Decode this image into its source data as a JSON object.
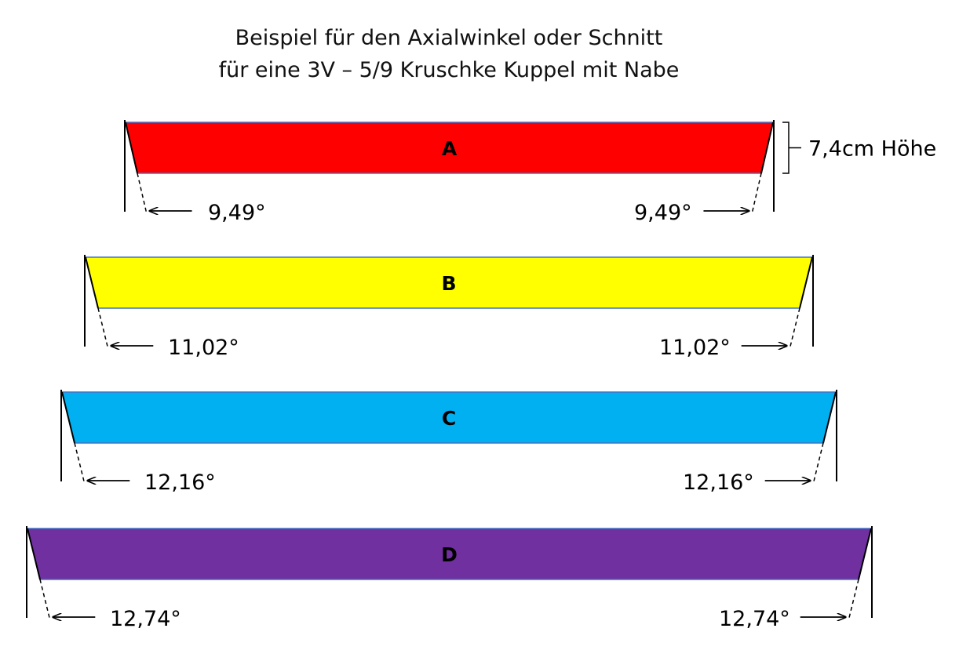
{
  "title": {
    "line1": "Beispiel für den Axialwinkel oder Schnitt",
    "line2": "für eine 3V – 5/9 Kruschke Kuppel mit Nabe"
  },
  "height_note": "7,4cm Höhe",
  "struts": [
    {
      "label": "A",
      "angle_left": "9,49°",
      "angle_right": "9,49°",
      "color": "#FF0000"
    },
    {
      "label": "B",
      "angle_left": "11,02°",
      "angle_right": "11,02°",
      "color": "#FFFF00"
    },
    {
      "label": "C",
      "angle_left": "12,16°",
      "angle_right": "12,16°",
      "color": "#00B0F0"
    },
    {
      "label": "D",
      "angle_left": "12,74°",
      "angle_right": "12,74°",
      "color": "#7030A0"
    }
  ]
}
